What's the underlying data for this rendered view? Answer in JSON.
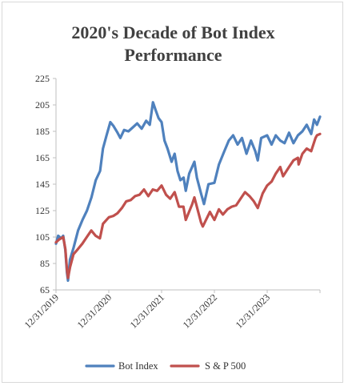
{
  "chart_data": {
    "type": "line",
    "title_line1": "2020's Decade of Bot Index",
    "title_line2": "Performance",
    "xlabel": "",
    "ylabel": "",
    "ylim": [
      65,
      225
    ],
    "yticks": [
      65,
      85,
      105,
      125,
      145,
      165,
      185,
      205,
      225
    ],
    "xticks": [
      "12/31/2019",
      "12/31/2020",
      "12/31/2021",
      "12/31/2022",
      "12/31/2023"
    ],
    "x_is_time": true,
    "grid": false,
    "legend": "bottom",
    "series": [
      {
        "name": "Bot Index",
        "color": "#4f81bd",
        "points": [
          [
            "2019-12-31",
            100
          ],
          [
            "2020-01-15",
            106
          ],
          [
            "2020-02-05",
            104
          ],
          [
            "2020-02-19",
            106
          ],
          [
            "2020-03-05",
            95
          ],
          [
            "2020-03-16",
            78
          ],
          [
            "2020-03-23",
            72
          ],
          [
            "2020-04-06",
            88
          ],
          [
            "2020-05-01",
            97
          ],
          [
            "2020-06-01",
            110
          ],
          [
            "2020-07-01",
            118
          ],
          [
            "2020-08-01",
            125
          ],
          [
            "2020-09-01",
            135
          ],
          [
            "2020-10-01",
            148
          ],
          [
            "2020-10-31",
            155
          ],
          [
            "2020-11-20",
            172
          ],
          [
            "2020-12-15",
            182
          ],
          [
            "2021-01-10",
            192
          ],
          [
            "2021-02-01",
            189
          ],
          [
            "2021-03-01",
            184
          ],
          [
            "2021-03-20",
            180
          ],
          [
            "2021-04-15",
            186
          ],
          [
            "2021-05-15",
            185
          ],
          [
            "2021-06-15",
            188
          ],
          [
            "2021-07-15",
            191
          ],
          [
            "2021-08-15",
            187
          ],
          [
            "2021-09-15",
            193
          ],
          [
            "2021-10-10",
            190
          ],
          [
            "2021-11-01",
            207
          ],
          [
            "2021-11-20",
            201
          ],
          [
            "2021-12-10",
            195
          ],
          [
            "2021-12-31",
            192
          ],
          [
            "2022-01-20",
            178
          ],
          [
            "2022-02-10",
            172
          ],
          [
            "2022-03-10",
            162
          ],
          [
            "2022-03-31",
            168
          ],
          [
            "2022-04-20",
            155
          ],
          [
            "2022-05-10",
            148
          ],
          [
            "2022-06-01",
            150
          ],
          [
            "2022-06-16",
            140
          ],
          [
            "2022-07-10",
            153
          ],
          [
            "2022-08-15",
            162
          ],
          [
            "2022-09-01",
            150
          ],
          [
            "2022-09-30",
            138
          ],
          [
            "2022-10-20",
            130
          ],
          [
            "2022-11-20",
            145
          ],
          [
            "2022-12-31",
            146
          ],
          [
            "2023-02-01",
            160
          ],
          [
            "2023-03-10",
            170
          ],
          [
            "2023-04-10",
            178
          ],
          [
            "2023-05-10",
            182
          ],
          [
            "2023-06-10",
            175
          ],
          [
            "2023-07-10",
            180
          ],
          [
            "2023-08-10",
            168
          ],
          [
            "2023-09-10",
            178
          ],
          [
            "2023-10-10",
            170
          ],
          [
            "2023-10-27",
            163
          ],
          [
            "2023-11-20",
            180
          ],
          [
            "2023-12-31",
            182
          ],
          [
            "2024-01-31",
            175
          ],
          [
            "2024-02-29",
            182
          ],
          [
            "2024-03-31",
            178
          ],
          [
            "2024-04-30",
            176
          ],
          [
            "2024-05-31",
            184
          ],
          [
            "2024-06-30",
            176
          ],
          [
            "2024-07-31",
            182
          ],
          [
            "2024-08-31",
            185
          ],
          [
            "2024-09-30",
            190
          ],
          [
            "2024-10-31",
            183
          ],
          [
            "2024-11-20",
            194
          ],
          [
            "2024-12-10",
            190
          ],
          [
            "2024-12-31",
            196
          ]
        ]
      },
      {
        "name": "S & P 500",
        "color": "#c0504d",
        "points": [
          [
            "2019-12-31",
            101
          ],
          [
            "2020-01-20",
            103
          ],
          [
            "2020-02-19",
            105
          ],
          [
            "2020-03-05",
            96
          ],
          [
            "2020-03-16",
            80
          ],
          [
            "2020-03-23",
            74
          ],
          [
            "2020-04-06",
            82
          ],
          [
            "2020-04-30",
            92
          ],
          [
            "2020-05-31",
            96
          ],
          [
            "2020-06-30",
            100
          ],
          [
            "2020-07-31",
            105
          ],
          [
            "2020-08-31",
            110
          ],
          [
            "2020-09-30",
            106
          ],
          [
            "2020-10-30",
            104
          ],
          [
            "2020-11-20",
            115
          ],
          [
            "2020-12-31",
            120
          ],
          [
            "2021-01-31",
            121
          ],
          [
            "2021-02-28",
            123
          ],
          [
            "2021-03-31",
            127
          ],
          [
            "2021-04-30",
            132
          ],
          [
            "2021-05-31",
            133
          ],
          [
            "2021-06-30",
            136
          ],
          [
            "2021-07-31",
            137
          ],
          [
            "2021-08-31",
            141
          ],
          [
            "2021-09-30",
            136
          ],
          [
            "2021-10-31",
            141
          ],
          [
            "2021-11-30",
            140
          ],
          [
            "2021-12-31",
            144
          ],
          [
            "2022-01-31",
            137
          ],
          [
            "2022-02-28",
            134
          ],
          [
            "2022-03-31",
            139
          ],
          [
            "2022-04-30",
            128
          ],
          [
            "2022-05-31",
            128
          ],
          [
            "2022-06-16",
            118
          ],
          [
            "2022-07-31",
            130
          ],
          [
            "2022-08-15",
            135
          ],
          [
            "2022-09-30",
            116
          ],
          [
            "2022-10-12",
            113
          ],
          [
            "2022-11-30",
            124
          ],
          [
            "2022-12-31",
            118
          ],
          [
            "2023-01-31",
            126
          ],
          [
            "2023-02-28",
            122
          ],
          [
            "2023-03-31",
            126
          ],
          [
            "2023-04-30",
            128
          ],
          [
            "2023-05-31",
            129
          ],
          [
            "2023-06-30",
            134
          ],
          [
            "2023-07-31",
            139
          ],
          [
            "2023-08-31",
            136
          ],
          [
            "2023-09-30",
            132
          ],
          [
            "2023-10-27",
            127
          ],
          [
            "2023-11-30",
            138
          ],
          [
            "2023-12-31",
            144
          ],
          [
            "2024-01-31",
            147
          ],
          [
            "2024-02-29",
            153
          ],
          [
            "2024-03-31",
            158
          ],
          [
            "2024-04-19",
            151
          ],
          [
            "2024-05-31",
            158
          ],
          [
            "2024-06-30",
            163
          ],
          [
            "2024-07-31",
            165
          ],
          [
            "2024-08-05",
            160
          ],
          [
            "2024-08-31",
            168
          ],
          [
            "2024-09-30",
            172
          ],
          [
            "2024-10-31",
            170
          ],
          [
            "2024-11-30",
            180
          ],
          [
            "2024-12-10",
            182
          ],
          [
            "2024-12-31",
            183
          ]
        ]
      }
    ]
  }
}
